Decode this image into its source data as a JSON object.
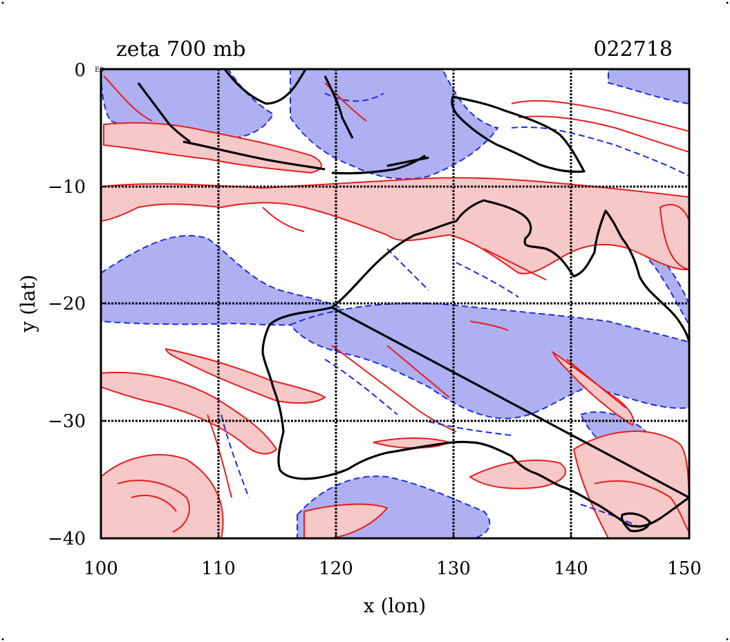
{
  "title_left": "zeta 700 mb",
  "title_right": "022718",
  "corner_mark": "E0",
  "xlabel": "x (lon)",
  "ylabel": "y (lat)",
  "x_ticks": [
    "100",
    "110",
    "120",
    "130",
    "140",
    "150"
  ],
  "y_ticks": [
    "0",
    "−10",
    "−20",
    "−30",
    "−40"
  ],
  "map": {
    "lon_range": [
      100,
      150
    ],
    "lat_range": [
      -40,
      0
    ],
    "grid_lon": [
      110,
      120,
      130,
      140
    ],
    "grid_lat": [
      -10,
      -20,
      -30
    ],
    "colors": {
      "positive_fill": "#f7c8c8",
      "positive_line": "#e81c1c",
      "negative_fill": "#aeb0f2",
      "negative_line": "#1d2be0",
      "coast": "#000000",
      "grid": "#000000"
    }
  }
}
